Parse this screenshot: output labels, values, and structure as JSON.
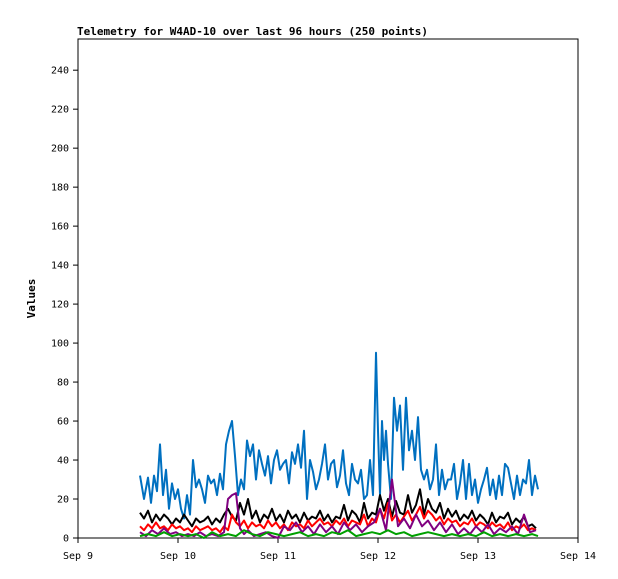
{
  "chart_data": {
    "type": "line",
    "title": "Telemetry for W4AD-10 over last 96 hours (250 points)",
    "xlabel": "",
    "ylabel": "Values",
    "xlim": [
      "Sep 9",
      "Sep 14"
    ],
    "ylim": [
      0,
      256
    ],
    "x_ticks": [
      "Sep 9",
      "Sep 10",
      "Sep 11",
      "Sep 12",
      "Sep 13",
      "Sep 14"
    ],
    "y_ticks": [
      0,
      20,
      40,
      60,
      80,
      100,
      120,
      140,
      160,
      180,
      200,
      220,
      240
    ],
    "grid": false,
    "legend": "none",
    "x_unit": "days since Sep 9 00:00",
    "series": [
      {
        "color": "#0070c0",
        "x": [
          0.62,
          0.66,
          0.7,
          0.73,
          0.76,
          0.79,
          0.82,
          0.85,
          0.88,
          0.91,
          0.94,
          0.97,
          1.0,
          1.03,
          1.06,
          1.09,
          1.12,
          1.15,
          1.18,
          1.21,
          1.24,
          1.27,
          1.3,
          1.33,
          1.36,
          1.39,
          1.42,
          1.45,
          1.48,
          1.51,
          1.54,
          1.57,
          1.6,
          1.63,
          1.66,
          1.69,
          1.72,
          1.75,
          1.78,
          1.81,
          1.84,
          1.87,
          1.9,
          1.93,
          1.96,
          1.99,
          2.02,
          2.05,
          2.08,
          2.11,
          2.14,
          2.17,
          2.2,
          2.23,
          2.26,
          2.29,
          2.32,
          2.35,
          2.38,
          2.41,
          2.44,
          2.47,
          2.5,
          2.53,
          2.56,
          2.59,
          2.62,
          2.65,
          2.68,
          2.71,
          2.74,
          2.77,
          2.8,
          2.83,
          2.86,
          2.89,
          2.92,
          2.95,
          2.98,
          3.0,
          3.02,
          3.04,
          3.06,
          3.08,
          3.1,
          3.13,
          3.16,
          3.19,
          3.22,
          3.25,
          3.28,
          3.31,
          3.34,
          3.37,
          3.4,
          3.43,
          3.46,
          3.49,
          3.52,
          3.55,
          3.58,
          3.61,
          3.64,
          3.67,
          3.7,
          3.73,
          3.76,
          3.79,
          3.82,
          3.85,
          3.88,
          3.91,
          3.94,
          3.97,
          4.0,
          4.03,
          4.06,
          4.09,
          4.12,
          4.15,
          4.18,
          4.21,
          4.24,
          4.27,
          4.3,
          4.33,
          4.36,
          4.39,
          4.42,
          4.45,
          4.48,
          4.51,
          4.54,
          4.57,
          4.6
        ],
        "y": [
          32,
          20,
          31,
          18,
          32,
          24,
          48,
          22,
          35,
          15,
          28,
          20,
          25,
          15,
          10,
          22,
          12,
          40,
          26,
          30,
          25,
          18,
          32,
          28,
          30,
          22,
          33,
          25,
          48,
          55,
          60,
          42,
          22,
          30,
          25,
          50,
          42,
          48,
          30,
          45,
          38,
          32,
          42,
          28,
          40,
          45,
          35,
          38,
          40,
          28,
          44,
          38,
          48,
          36,
          55,
          20,
          40,
          34,
          25,
          30,
          38,
          48,
          30,
          38,
          40,
          26,
          32,
          45,
          28,
          22,
          38,
          30,
          28,
          35,
          20,
          22,
          40,
          22,
          95,
          55,
          22,
          60,
          40,
          55,
          38,
          20,
          72,
          55,
          68,
          35,
          72,
          45,
          55,
          40,
          62,
          35,
          30,
          35,
          25,
          30,
          48,
          22,
          35,
          25,
          30,
          30,
          38,
          20,
          28,
          40,
          20,
          38,
          22,
          30,
          18,
          25,
          30,
          36,
          22,
          30,
          20,
          32,
          22,
          38,
          36,
          28,
          20,
          32,
          22,
          30,
          28,
          40,
          22,
          32,
          25
        ]
      },
      {
        "color": "#000000",
        "x": [
          0.62,
          0.66,
          0.7,
          0.74,
          0.78,
          0.82,
          0.86,
          0.9,
          0.94,
          0.98,
          1.02,
          1.06,
          1.1,
          1.14,
          1.18,
          1.22,
          1.26,
          1.3,
          1.34,
          1.38,
          1.42,
          1.46,
          1.5,
          1.54,
          1.58,
          1.62,
          1.66,
          1.7,
          1.74,
          1.78,
          1.82,
          1.86,
          1.9,
          1.94,
          1.98,
          2.02,
          2.06,
          2.1,
          2.14,
          2.18,
          2.22,
          2.26,
          2.3,
          2.34,
          2.38,
          2.42,
          2.46,
          2.5,
          2.54,
          2.58,
          2.62,
          2.66,
          2.7,
          2.74,
          2.78,
          2.82,
          2.86,
          2.9,
          2.94,
          2.98,
          3.02,
          3.06,
          3.1,
          3.14,
          3.18,
          3.22,
          3.26,
          3.3,
          3.34,
          3.38,
          3.42,
          3.46,
          3.5,
          3.54,
          3.58,
          3.62,
          3.66,
          3.7,
          3.74,
          3.78,
          3.82,
          3.86,
          3.9,
          3.94,
          3.98,
          4.02,
          4.06,
          4.1,
          4.14,
          4.18,
          4.22,
          4.26,
          4.3,
          4.34,
          4.38,
          4.42,
          4.46,
          4.5,
          4.54,
          4.58
        ],
        "y": [
          13,
          10,
          14,
          8,
          12,
          9,
          12,
          10,
          7,
          10,
          8,
          12,
          9,
          6,
          10,
          8,
          9,
          11,
          7,
          10,
          8,
          12,
          15,
          11,
          9,
          18,
          12,
          20,
          10,
          14,
          8,
          12,
          10,
          15,
          9,
          12,
          8,
          14,
          10,
          12,
          8,
          13,
          9,
          11,
          10,
          14,
          9,
          12,
          8,
          11,
          10,
          17,
          9,
          14,
          12,
          8,
          18,
          10,
          13,
          12,
          22,
          14,
          20,
          11,
          19,
          13,
          12,
          22,
          13,
          17,
          25,
          12,
          20,
          15,
          13,
          18,
          10,
          15,
          11,
          14,
          9,
          12,
          10,
          14,
          9,
          12,
          10,
          7,
          13,
          8,
          11,
          10,
          13,
          7,
          10,
          8,
          11,
          6,
          7,
          5
        ]
      },
      {
        "color": "#ff0000",
        "x": [
          0.62,
          0.66,
          0.7,
          0.74,
          0.78,
          0.82,
          0.86,
          0.9,
          0.94,
          0.98,
          1.02,
          1.06,
          1.1,
          1.14,
          1.18,
          1.22,
          1.26,
          1.3,
          1.34,
          1.38,
          1.42,
          1.46,
          1.5,
          1.54,
          1.58,
          1.62,
          1.66,
          1.7,
          1.74,
          1.78,
          1.82,
          1.86,
          1.9,
          1.94,
          1.98,
          2.02,
          2.06,
          2.1,
          2.14,
          2.18,
          2.22,
          2.26,
          2.3,
          2.34,
          2.38,
          2.42,
          2.46,
          2.5,
          2.54,
          2.58,
          2.62,
          2.66,
          2.7,
          2.74,
          2.78,
          2.82,
          2.86,
          2.9,
          2.94,
          2.98,
          3.02,
          3.06,
          3.1,
          3.14,
          3.18,
          3.22,
          3.26,
          3.3,
          3.34,
          3.38,
          3.42,
          3.46,
          3.5,
          3.54,
          3.58,
          3.62,
          3.66,
          3.7,
          3.74,
          3.78,
          3.82,
          3.86,
          3.9,
          3.94,
          3.98,
          4.02,
          4.06,
          4.1,
          4.14,
          4.18,
          4.22,
          4.26,
          4.3,
          4.34,
          4.38,
          4.42,
          4.46,
          4.5,
          4.54,
          4.58
        ],
        "y": [
          6,
          4,
          7,
          5,
          8,
          5,
          6,
          4,
          7,
          5,
          6,
          4,
          5,
          3,
          6,
          4,
          5,
          6,
          4,
          5,
          3,
          6,
          4,
          12,
          8,
          6,
          9,
          5,
          8,
          6,
          7,
          5,
          9,
          6,
          8,
          5,
          7,
          4,
          8,
          6,
          7,
          5,
          9,
          6,
          8,
          10,
          7,
          8,
          6,
          9,
          7,
          10,
          6,
          9,
          8,
          7,
          12,
          6,
          10,
          8,
          15,
          10,
          18,
          9,
          12,
          8,
          11,
          14,
          9,
          12,
          16,
          10,
          14,
          12,
          9,
          11,
          7,
          10,
          8,
          9,
          6,
          8,
          7,
          10,
          6,
          8,
          7,
          5,
          8,
          6,
          7,
          5,
          8,
          4,
          6,
          5,
          7,
          4,
          5,
          4
        ]
      },
      {
        "color": "#800080",
        "x": [
          0.62,
          0.68,
          0.74,
          0.8,
          0.86,
          0.92,
          0.98,
          1.04,
          1.1,
          1.16,
          1.22,
          1.28,
          1.34,
          1.4,
          1.46,
          1.5,
          1.54,
          1.58,
          1.62,
          1.66,
          1.7,
          1.76,
          1.82,
          1.88,
          1.94,
          2.0,
          2.06,
          2.12,
          2.18,
          2.24,
          2.3,
          2.36,
          2.42,
          2.48,
          2.54,
          2.6,
          2.66,
          2.72,
          2.78,
          2.84,
          2.9,
          2.96,
          3.02,
          3.08,
          3.14,
          3.2,
          3.26,
          3.32,
          3.38,
          3.44,
          3.5,
          3.56,
          3.62,
          3.68,
          3.74,
          3.8,
          3.86,
          3.92,
          3.98,
          4.04,
          4.1,
          4.16,
          4.22,
          4.28,
          4.34,
          4.4,
          4.46,
          4.52,
          4.58
        ],
        "y": [
          3,
          1,
          4,
          2,
          5,
          2,
          3,
          1,
          2,
          1,
          3,
          1,
          2,
          1,
          3,
          20,
          22,
          23,
          5,
          2,
          4,
          1,
          2,
          3,
          1,
          0,
          6,
          4,
          8,
          3,
          6,
          2,
          7,
          3,
          6,
          2,
          8,
          4,
          7,
          3,
          6,
          8,
          15,
          4,
          30,
          6,
          10,
          5,
          12,
          6,
          9,
          4,
          8,
          3,
          7,
          2,
          5,
          2,
          6,
          3,
          7,
          2,
          5,
          3,
          6,
          2,
          12,
          3,
          4
        ]
      },
      {
        "color": "#00a000",
        "x": [
          0.62,
          0.7,
          0.78,
          0.86,
          0.94,
          1.02,
          1.1,
          1.18,
          1.26,
          1.34,
          1.42,
          1.5,
          1.58,
          1.66,
          1.74,
          1.82,
          1.9,
          1.98,
          2.06,
          2.14,
          2.22,
          2.3,
          2.38,
          2.46,
          2.54,
          2.62,
          2.7,
          2.78,
          2.86,
          2.94,
          3.02,
          3.1,
          3.18,
          3.26,
          3.34,
          3.42,
          3.5,
          3.58,
          3.66,
          3.74,
          3.82,
          3.9,
          3.98,
          4.06,
          4.14,
          4.22,
          4.3,
          4.38,
          4.46,
          4.54,
          4.6
        ],
        "y": [
          1,
          2,
          1,
          3,
          1,
          2,
          1,
          2,
          0,
          3,
          1,
          2,
          1,
          4,
          2,
          1,
          3,
          2,
          1,
          2,
          3,
          1,
          2,
          1,
          3,
          2,
          4,
          1,
          2,
          3,
          2,
          4,
          2,
          3,
          1,
          2,
          3,
          2,
          1,
          2,
          1,
          2,
          1,
          3,
          1,
          2,
          1,
          2,
          1,
          2,
          1
        ]
      }
    ]
  }
}
